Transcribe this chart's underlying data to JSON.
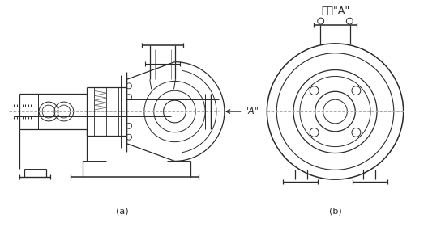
{
  "bg_color": "#ffffff",
  "line_color": "#2a2a2a",
  "dash_color": "#999999",
  "label_a": "(a)",
  "label_b": "(b)",
  "title": "矢視\"A\"",
  "fig_width": 5.28,
  "fig_height": 2.81,
  "dpi": 100
}
